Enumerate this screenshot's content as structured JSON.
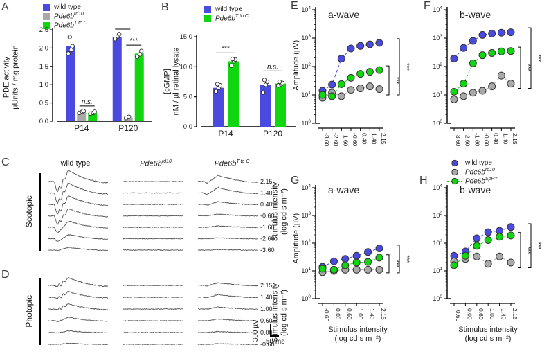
{
  "letters": {
    "A": "A",
    "B": "B",
    "C": "C",
    "D": "D",
    "E": "E",
    "F": "F",
    "G": "G",
    "H": "H"
  },
  "colors": {
    "blue": "#4a4ae1",
    "gray": "#a9a9a9",
    "green": "#0fd60f",
    "marker_stroke": "#333333",
    "trace": "#555555",
    "axis": "#000000"
  },
  "legends": {
    "A": {
      "items": [
        {
          "label": "wild type",
          "color": "blue"
        },
        {
          "base": "Pde6b",
          "sup": "rd10",
          "color": "gray"
        },
        {
          "base": "Pde6b",
          "sup": "T to C",
          "color": "green"
        }
      ]
    },
    "B": {
      "items": [
        {
          "label": "wild type",
          "color": "blue"
        },
        {
          "base": "Pde6b",
          "sup": "T to C",
          "color": "green"
        }
      ]
    },
    "EFGH": {
      "items": [
        {
          "label": "wild type",
          "color": "blue"
        },
        {
          "base": "Pde6b",
          "sup": "rd10",
          "color": "gray"
        },
        {
          "base": "Pde6b",
          "sup": "SpRY",
          "color": "green"
        }
      ]
    }
  },
  "chart_data": [
    {
      "id": "A",
      "type": "bar",
      "title": "",
      "ylabel_lines": [
        "PDE activity",
        "µUnits / mg protein"
      ],
      "yticks": [
        0.0,
        0.5,
        1.0,
        1.5,
        2.0,
        2.5
      ],
      "ylim": [
        0,
        2.5
      ],
      "groups": [
        "P14",
        "P120"
      ],
      "series": [
        {
          "name": "wild type",
          "color": "blue",
          "values": [
            2.05,
            2.3
          ],
          "points": [
            [
              1.85,
              1.95,
              2.05,
              2.3
            ],
            [
              2.25,
              2.32,
              2.38
            ]
          ]
        },
        {
          "name": "Pde6b rd10",
          "color": "gray",
          "values": [
            0.25,
            0.1
          ],
          "points": [
            [
              0.23,
              0.26,
              0.28
            ],
            [
              0.09,
              0.12
            ]
          ]
        },
        {
          "name": "Pde6b T to C",
          "color": "green",
          "values": [
            0.23,
            1.85
          ],
          "points": [
            [
              0.21,
              0.23,
              0.26
            ],
            [
              1.76,
              1.83,
              1.92
            ]
          ]
        }
      ],
      "annotations": [
        {
          "group": 0,
          "s1": 1,
          "s2": 2,
          "y": 0.42,
          "label": "n.s.",
          "italic": true
        },
        {
          "group": 1,
          "s1": 0,
          "s2": 1,
          "y": 2.52,
          "label": "***",
          "italic": false
        },
        {
          "group": 1,
          "s1": 1,
          "s2": 2,
          "y": 2.08,
          "label": "***",
          "italic": false
        }
      ]
    },
    {
      "id": "B",
      "type": "bar",
      "title": "",
      "ylabel_lines": [
        "[cGMP]",
        "nM / µl retinal lysate"
      ],
      "yticks": [
        0.0,
        5.0,
        10.0,
        15.0
      ],
      "ylim": [
        0,
        15
      ],
      "groups": [
        "P14",
        "P120"
      ],
      "series": [
        {
          "name": "wild type",
          "color": "blue",
          "values": [
            6.5,
            7.0
          ],
          "points": [
            [
              5.9,
              6.5,
              6.9,
              7.1
            ],
            [
              5.7,
              7.0,
              7.5,
              7.8
            ]
          ]
        },
        {
          "name": "Pde6b T to C",
          "color": "green",
          "values": [
            10.9,
            7.2
          ],
          "points": [
            [
              10.2,
              10.9,
              11.2,
              11.3
            ],
            [
              6.9,
              7.1,
              7.3,
              7.5
            ]
          ]
        }
      ],
      "annotations": [
        {
          "group": 0,
          "s1": 0,
          "s2": 1,
          "y": 12.3,
          "label": "***",
          "italic": false
        },
        {
          "group": 1,
          "s1": 0,
          "s2": 1,
          "y": 9.3,
          "label": "n.s.",
          "italic": true
        }
      ]
    },
    {
      "id": "E",
      "type": "scatter-log",
      "title": "a-wave",
      "ylabel": "Amplitude (µV)",
      "ylim_exp": [
        0,
        4
      ],
      "x_labels": [
        "-3.60",
        "-2.60",
        "-1.60",
        "-0.60",
        "0.40",
        "1.40",
        "2.15"
      ],
      "series": [
        {
          "name": "wild type",
          "color": "blue",
          "values": [
            14,
            23,
            190,
            430,
            530,
            600,
            680
          ]
        },
        {
          "name": "Pde6b rd10",
          "color": "gray",
          "values": [
            8,
            12,
            9,
            15,
            17,
            20,
            16
          ]
        },
        {
          "name": "Pde6b SpRY",
          "color": "green",
          "values": [
            10,
            9,
            24,
            40,
            55,
            65,
            75
          ]
        }
      ],
      "brackets": [
        {
          "v1": 105,
          "v2": 10,
          "label": "***"
        },
        {
          "v1": 950,
          "v2": 10,
          "label": "***"
        }
      ]
    },
    {
      "id": "F",
      "type": "scatter-log",
      "title": "b-wave",
      "ylabel": "",
      "ylim_exp": [
        0,
        4
      ],
      "x_labels": [
        "-3.60",
        "-2.60",
        "-1.60",
        "-0.60",
        "0.40",
        "1.40",
        "2.15"
      ],
      "series": [
        {
          "name": "wild type",
          "color": "blue",
          "values": [
            190,
            450,
            800,
            1300,
            1450,
            1550,
            1600
          ]
        },
        {
          "name": "Pde6b rd10",
          "color": "gray",
          "values": [
            7,
            9,
            12,
            14,
            20,
            48,
            25
          ]
        },
        {
          "name": "Pde6b SpRY",
          "color": "green",
          "values": [
            13,
            25,
            130,
            250,
            300,
            340,
            350
          ]
        }
      ],
      "brackets": [
        {
          "v1": 480,
          "v2": 17,
          "label": "***"
        },
        {
          "v1": 2300,
          "v2": 17,
          "label": "***"
        }
      ]
    },
    {
      "id": "G",
      "type": "scatter-log",
      "title": "a-wave",
      "ylabel": "Amplitude (µV)",
      "xlabel_lines": [
        "Stimulus intensity",
        "(log cd s m⁻²)"
      ],
      "ylim_exp": [
        0,
        4
      ],
      "x_labels": [
        "-0.60",
        "0.00",
        "0.60",
        "1.00",
        "1.40",
        "2.15"
      ],
      "series": [
        {
          "name": "wild type",
          "color": "blue",
          "values": [
            14,
            22,
            27,
            35,
            48,
            65
          ]
        },
        {
          "name": "Pde6b rd10",
          "color": "gray",
          "values": [
            9,
            10,
            11,
            11,
            11,
            11
          ]
        },
        {
          "name": "Pde6b SpRY",
          "color": "green",
          "values": [
            12,
            11,
            16,
            20,
            21,
            30
          ]
        }
      ],
      "brackets": [
        {
          "v1": 38,
          "v2": 8.5,
          "label": "***"
        },
        {
          "v1": 85,
          "v2": 8.5,
          "label": "***"
        }
      ]
    },
    {
      "id": "H",
      "type": "scatter-log",
      "title": "b-wave",
      "ylabel": "",
      "xlabel_lines": [
        "Stimulus intensity",
        "(log cd s m⁻²)"
      ],
      "ylim_exp": [
        0,
        4
      ],
      "x_labels": [
        "-0.60",
        "0.00",
        "0.60",
        "1.00",
        "1.40",
        "2.15"
      ],
      "series": [
        {
          "name": "wild type",
          "color": "blue",
          "values": [
            35,
            50,
            150,
            250,
            280,
            380
          ]
        },
        {
          "name": "Pde6b rd10",
          "color": "gray",
          "values": [
            22,
            27,
            33,
            18,
            33,
            20
          ]
        },
        {
          "name": "Pde6b SpRY",
          "color": "green",
          "values": [
            16,
            35,
            80,
            130,
            170,
            190
          ]
        }
      ],
      "brackets": [
        {
          "v1": 240,
          "v2": 13,
          "label": "***"
        },
        {
          "v1": 500,
          "v2": 13,
          "label": "***"
        }
      ]
    }
  ],
  "traces": {
    "C": {
      "side_label": "Scotopic",
      "headers": [
        {
          "label": "wild type"
        },
        {
          "base": "Pde6b",
          "sup": "rd10"
        },
        {
          "base": "Pde6b",
          "sup": "T to C"
        }
      ],
      "right_label_lines": [
        "Stimulus intensity",
        "(log cd s m⁻²)"
      ],
      "rows": [
        {
          "label": "2.15",
          "wt": {
            "a": 15,
            "b": 16,
            "osc": 1,
            "n": 0.6
          },
          "rd10": {
            "n": 0.5
          },
          "ttoc": {
            "a": 2,
            "b": 9,
            "n": 0.5
          }
        },
        {
          "label": "1.40",
          "wt": {
            "a": 15,
            "b": 14,
            "osc": 1,
            "n": 0.6
          },
          "rd10": {
            "n": 0.5
          },
          "ttoc": {
            "a": 2,
            "b": 8,
            "n": 0.5
          }
        },
        {
          "label": "0.40",
          "wt": {
            "a": 14,
            "b": 12,
            "osc": 1,
            "n": 0.6
          },
          "rd10": {
            "n": 0.5
          },
          "ttoc": {
            "a": 1,
            "b": 4,
            "n": 0.5
          }
        },
        {
          "label": "-0.60",
          "wt": {
            "a": 12,
            "b": 10,
            "osc": 1,
            "n": 0.6
          },
          "rd10": {
            "n": 0.5
          },
          "ttoc": {
            "a": 0,
            "b": 2.5,
            "n": 0.5
          }
        },
        {
          "label": "-1.60",
          "wt": {
            "a": 8,
            "b": 9,
            "osc": 0,
            "n": 0.6
          },
          "rd10": {
            "n": 0.5
          },
          "ttoc": {
            "a": 0,
            "b": 2,
            "n": 0.5
          }
        },
        {
          "label": "-2.60",
          "wt": {
            "a": 4,
            "b": 6,
            "osc": 0,
            "n": 0.5
          },
          "rd10": {
            "n": 0.5
          },
          "ttoc": {
            "a": 0,
            "b": 1.2,
            "n": 0.5
          }
        },
        {
          "label": "-3.60",
          "wt": {
            "a": 0.5,
            "b": 4,
            "osc": 0,
            "n": 0.5
          },
          "rd10": {
            "n": 0.5
          },
          "ttoc": {
            "a": 0,
            "b": 0.8,
            "n": 0.5
          }
        }
      ]
    },
    "D": {
      "side_label": "Photopic",
      "right_label_lines": [
        "Stimulus intensity",
        "(log cd s m⁻²)"
      ],
      "rows": [
        {
          "label": "2.15",
          "wt": {
            "a": 2,
            "b": 11,
            "osc": 1,
            "n": 0.7
          },
          "rd10": {
            "n": 0.5
          },
          "ttoc": {
            "a": 0.5,
            "b": 4,
            "n": 0.5
          }
        },
        {
          "label": "1.40",
          "wt": {
            "a": 1.5,
            "b": 8,
            "osc": 1,
            "n": 0.6
          },
          "rd10": {
            "n": 0.5
          },
          "ttoc": {
            "a": 0.5,
            "b": 4,
            "n": 0.5
          }
        },
        {
          "label": "1.00",
          "wt": {
            "a": 1,
            "b": 7,
            "osc": 1,
            "n": 0.6
          },
          "rd10": {
            "n": 0.5
          },
          "ttoc": {
            "a": 0,
            "b": 3,
            "n": 0.5
          }
        },
        {
          "label": "0.60",
          "wt": {
            "a": 1,
            "b": 5,
            "osc": 0,
            "n": 0.5
          },
          "rd10": {
            "n": 0.5
          },
          "ttoc": {
            "a": 0,
            "b": 2.5,
            "n": 0.5
          }
        },
        {
          "label": "0.00",
          "wt": {
            "a": 0.5,
            "b": 2.5,
            "osc": 0,
            "n": 0.5
          },
          "rd10": {
            "n": 0.5
          },
          "ttoc": {
            "a": 0,
            "b": 1.5,
            "n": 0.5
          }
        },
        {
          "label": "-0.60",
          "wt": {
            "a": 0,
            "b": 1.5,
            "osc": 0,
            "n": 0.5
          },
          "rd10": {
            "n": 0.5
          },
          "ttoc": {
            "a": 0,
            "b": 1,
            "n": 0.5
          }
        }
      ]
    }
  },
  "scalebar": {
    "v": "300 µV",
    "h": "50 ms"
  }
}
